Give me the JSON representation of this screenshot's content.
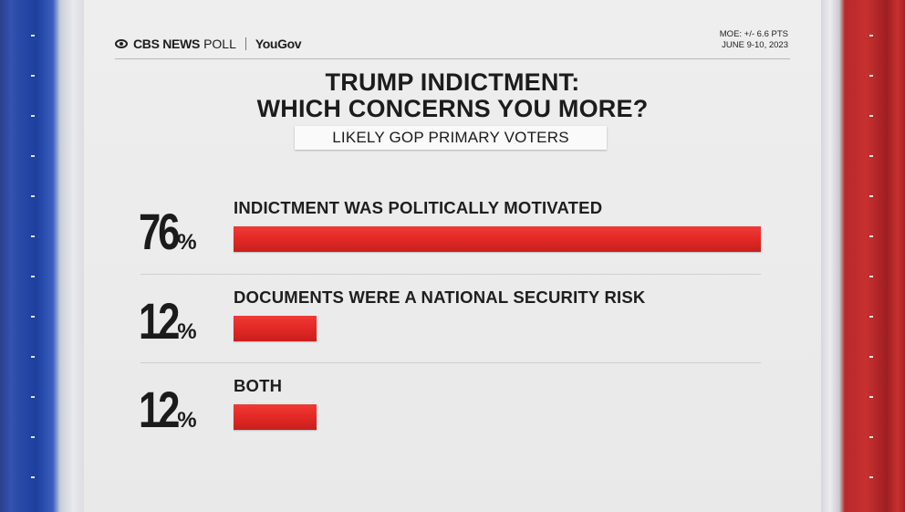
{
  "header": {
    "brand_cbs": "CBS NEWS",
    "brand_poll": "POLL",
    "brand_yougov": "YouGov",
    "moe": "MOE: +/- 6.6 PTS",
    "dates": "JUNE 9-10, 2023"
  },
  "chart_data": {
    "type": "bar",
    "title_line1": "TRUMP INDICTMENT:",
    "title_line2": "WHICH CONCERNS YOU MORE?",
    "subtitle": "LIKELY GOP PRIMARY VOTERS",
    "unit": "%",
    "max_value": 76,
    "items": [
      {
        "value": 76,
        "value_label": "76",
        "label": "INDICTMENT WAS POLITICALLY MOTIVATED"
      },
      {
        "value": 12,
        "value_label": "12",
        "label": "DOCUMENTS WERE A NATIONAL SECURITY RISK"
      },
      {
        "value": 12,
        "value_label": "12",
        "label": "BOTH"
      }
    ]
  },
  "colors": {
    "bar": "#e42a26",
    "text": "#1c1c1c"
  }
}
